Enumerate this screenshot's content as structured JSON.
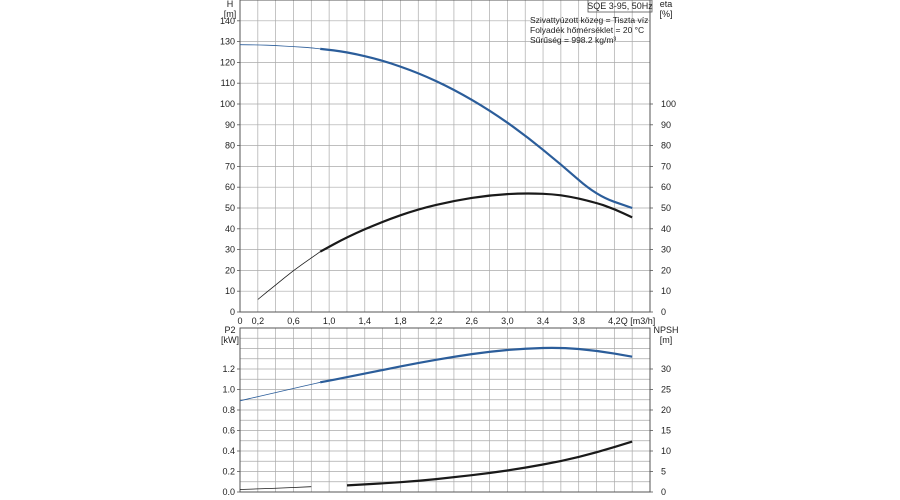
{
  "chart_data": [
    {
      "type": "line",
      "panel": "upper",
      "title": "SQE 3-95, 50Hz",
      "annotations": [
        "Szivattyúzott közeg = Tiszta víz",
        "Folyadék hőmérséklet = 20 °C",
        "Sűrűség = 998.2 kg/m³"
      ],
      "xlabel": "Q [m3/h]",
      "xlim": [
        0,
        4.6
      ],
      "x_ticks": [
        "0",
        "0,2",
        "0,6",
        "1,0",
        "1,4",
        "1,8",
        "2,2",
        "2,6",
        "3,0",
        "3,4",
        "3,8",
        "4,2"
      ],
      "y_left": {
        "label_top": "H",
        "label_unit": "[m]",
        "ylim": [
          0,
          150
        ],
        "ticks": [
          0,
          10,
          20,
          30,
          40,
          50,
          60,
          70,
          80,
          90,
          100,
          110,
          120,
          130,
          140
        ]
      },
      "y_right": {
        "label_top": "eta",
        "label_unit": "[%]",
        "ylim": [
          0,
          150
        ],
        "ticks": [
          0,
          10,
          20,
          30,
          40,
          50,
          60,
          70,
          80,
          90,
          100
        ]
      },
      "grid": true,
      "series": [
        {
          "color": "#2b5d9a",
          "axis": "left",
          "thin_until_x": 0.9,
          "x": [
            0,
            0.2,
            0.4,
            0.6,
            0.8,
            0.9,
            1.2,
            1.6,
            2.0,
            2.4,
            2.8,
            3.2,
            3.6,
            4.0,
            4.4
          ],
          "y": [
            128.5,
            128.4,
            128.1,
            127.6,
            127,
            126.5,
            125,
            121,
            115,
            107,
            97,
            85,
            71,
            56,
            50
          ]
        },
        {
          "color": "#1a1a1a",
          "axis": "right",
          "thin_until_x": 0.9,
          "x": [
            0.2,
            0.4,
            0.6,
            0.8,
            0.9,
            1.2,
            1.6,
            2.0,
            2.4,
            2.8,
            3.2,
            3.6,
            4.0,
            4.2,
            4.4
          ],
          "y": [
            6,
            13,
            20,
            26,
            29,
            36,
            43.5,
            49.5,
            53.5,
            56.2,
            57.2,
            56.5,
            52.5,
            49.5,
            45.5
          ]
        }
      ]
    },
    {
      "type": "line",
      "panel": "lower",
      "xlim": [
        0,
        4.6
      ],
      "y_left": {
        "label_top": "P2",
        "label_unit": "[kW]",
        "ylim": [
          0,
          1.6
        ],
        "ticks": [
          "0.0",
          "0.2",
          "0.4",
          "0.6",
          "0.8",
          "1.0",
          "1.2"
        ]
      },
      "y_right": {
        "label_top": "NPSH",
        "label_unit": "[m]",
        "ylim": [
          0,
          40
        ],
        "ticks": [
          0,
          5,
          10,
          15,
          20,
          25,
          30
        ]
      },
      "grid": true,
      "series": [
        {
          "color": "#2b5d9a",
          "axis": "left",
          "thin_until_x": 0.9,
          "x": [
            0,
            0.2,
            0.4,
            0.6,
            0.8,
            0.9,
            1.2,
            1.6,
            2.0,
            2.4,
            2.8,
            3.2,
            3.6,
            4.0,
            4.4
          ],
          "y": [
            0.89,
            0.93,
            0.97,
            1.01,
            1.05,
            1.07,
            1.12,
            1.19,
            1.26,
            1.32,
            1.37,
            1.4,
            1.41,
            1.38,
            1.32
          ]
        },
        {
          "color": "#1a1a1a",
          "axis": "right",
          "thin_until_x": 0.9,
          "x": [
            0,
            0.4,
            0.8,
            1.2,
            1.6,
            2.0,
            2.4,
            2.8,
            3.2,
            3.6,
            4.0,
            4.4
          ],
          "y": [
            0.6,
            0.9,
            1.3,
            1.6,
            2.1,
            2.7,
            3.6,
            4.6,
            5.9,
            7.5,
            9.6,
            12.3
          ]
        }
      ]
    }
  ],
  "colors": {
    "grid": "#aaaaaa",
    "frame": "#555555",
    "blue_curve": "#2b5d9a",
    "black_curve": "#1a1a1a"
  }
}
